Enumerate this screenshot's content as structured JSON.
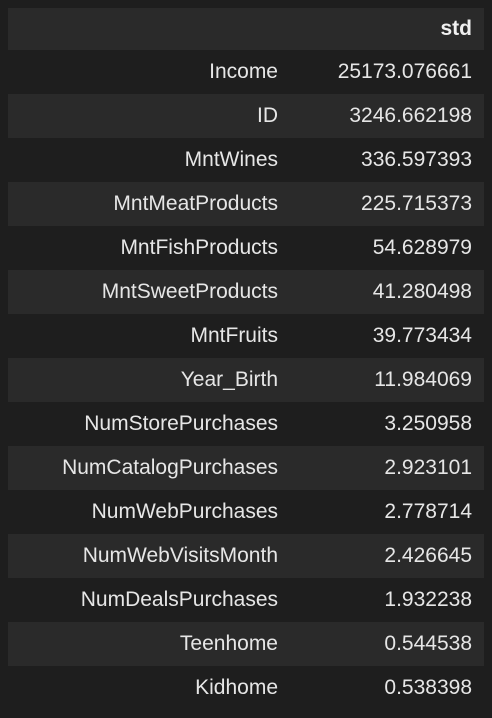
{
  "table": {
    "index_header": "",
    "column_header": "std",
    "rows": [
      {
        "label": "Income",
        "value": "25173.076661"
      },
      {
        "label": "ID",
        "value": "3246.662198"
      },
      {
        "label": "MntWines",
        "value": "336.597393"
      },
      {
        "label": "MntMeatProducts",
        "value": "225.715373"
      },
      {
        "label": "MntFishProducts",
        "value": "54.628979"
      },
      {
        "label": "MntSweetProducts",
        "value": "41.280498"
      },
      {
        "label": "MntFruits",
        "value": "39.773434"
      },
      {
        "label": "Year_Birth",
        "value": "11.984069"
      },
      {
        "label": "NumStorePurchases",
        "value": "3.250958"
      },
      {
        "label": "NumCatalogPurchases",
        "value": "2.923101"
      },
      {
        "label": "NumWebPurchases",
        "value": "2.778714"
      },
      {
        "label": "NumWebVisitsMonth",
        "value": "2.426645"
      },
      {
        "label": "NumDealsPurchases",
        "value": "1.932238"
      },
      {
        "label": "Teenhome",
        "value": "0.544538"
      },
      {
        "label": "Kidhome",
        "value": "0.538398"
      }
    ]
  }
}
